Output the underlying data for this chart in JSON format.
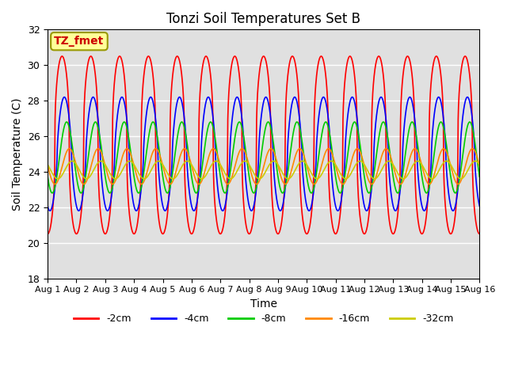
{
  "title": "Tonzi Soil Temperatures Set B",
  "xlabel": "Time",
  "ylabel": "Soil Temperature (C)",
  "ylim": [
    18,
    32
  ],
  "yticks": [
    18,
    20,
    22,
    24,
    26,
    28,
    30,
    32
  ],
  "xtick_labels": [
    "Aug 1",
    "Aug 2",
    "Aug 3",
    "Aug 4",
    "Aug 5",
    "Aug 6",
    "Aug 7",
    "Aug 8",
    "Aug 9",
    "Aug 10",
    "Aug 11",
    "Aug 12",
    "Aug 13",
    "Aug 14",
    "Aug 15",
    "Aug 16"
  ],
  "annotation_text": "TZ_fmet",
  "annotation_color": "#cc0000",
  "annotation_bg": "#ffff99",
  "annotation_edge": "#999900",
  "background_color": "#e0e0e0",
  "lines": [
    {
      "label": "-2cm",
      "color": "#ff0000",
      "mean": 25.5,
      "amplitude": 5.0,
      "phase": 0.0,
      "sharpness": 2.5
    },
    {
      "label": "-4cm",
      "color": "#0000ff",
      "mean": 25.0,
      "amplitude": 3.2,
      "phase": 0.5,
      "sharpness": 1.5
    },
    {
      "label": "-8cm",
      "color": "#00cc00",
      "mean": 24.8,
      "amplitude": 2.0,
      "phase": 1.0,
      "sharpness": 1.0
    },
    {
      "label": "-16cm",
      "color": "#ff8800",
      "mean": 24.3,
      "amplitude": 1.0,
      "phase": 1.6,
      "sharpness": 1.0
    },
    {
      "label": "-32cm",
      "color": "#cccc00",
      "mean": 24.1,
      "amplitude": 0.5,
      "phase": 2.2,
      "sharpness": 1.0
    }
  ],
  "legend_colors": [
    "#ff0000",
    "#0000ff",
    "#00cc00",
    "#ff8800",
    "#cccc00"
  ],
  "legend_labels": [
    "-2cm",
    "-4cm",
    "-8cm",
    "-16cm",
    "-32cm"
  ],
  "figsize": [
    6.4,
    4.8
  ],
  "dpi": 100
}
